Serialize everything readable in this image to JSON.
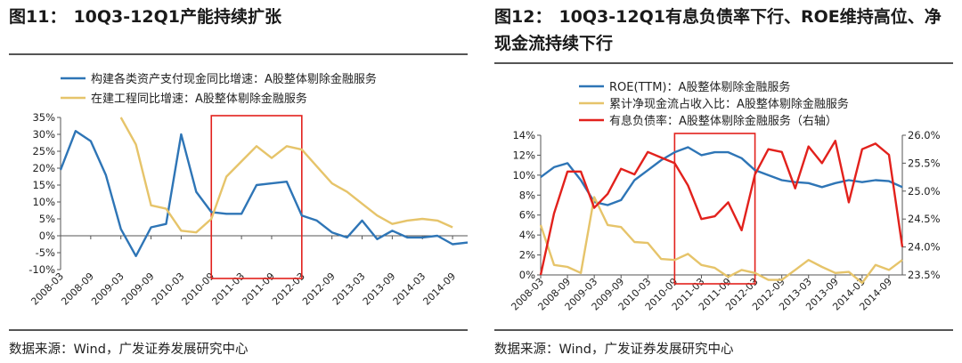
{
  "panels": [
    {
      "title_num": "图11：",
      "title": "10Q3-12Q1产能持续扩张",
      "source": "数据来源：Wind，广发证券发展研究中心"
    },
    {
      "title_num": "图12：",
      "title": "10Q3-12Q1有息负债率下行、ROE维持高位、净现金流持续下行",
      "source": "数据来源：Wind，广发证券发展研究中心"
    }
  ],
  "colors": {
    "blue": "#2E75B6",
    "gold": "#E6C46A",
    "red": "#E2211C",
    "highlight": "#E2211C",
    "axis": "#555555"
  },
  "chart_data": [
    {
      "type": "line",
      "title": "10Q3-12Q1产能持续扩张",
      "categories": [
        "2008-03",
        "2008-06",
        "2008-09",
        "2008-12",
        "2009-03",
        "2009-06",
        "2009-09",
        "2009-12",
        "2010-03",
        "2010-06",
        "2010-09",
        "2010-12",
        "2011-03",
        "2011-06",
        "2011-09",
        "2011-12",
        "2012-03",
        "2012-06",
        "2012-09",
        "2012-12",
        "2013-03",
        "2013-06",
        "2013-09",
        "2013-12",
        "2014-03",
        "2014-06",
        "2014-09",
        "2014-12"
      ],
      "x_tick_labels": [
        "2008-03",
        "2008-09",
        "2009-03",
        "2009-09",
        "2010-03",
        "2010-09",
        "2011-03",
        "2011-09",
        "2012-03",
        "2012-09",
        "2013-03",
        "2013-09",
        "2014-03",
        "2014-09"
      ],
      "ylim": [
        -10,
        35
      ],
      "y_ticks": [
        "35%",
        "30%",
        "25%",
        "20%",
        "15%",
        "10%",
        "5%",
        "0%",
        "-5%",
        "-10%"
      ],
      "legend_placement": "top",
      "highlight": {
        "from": "2010-09",
        "to": "2012-03"
      },
      "series": [
        {
          "name": "构建各类资产支付现金同比增速：A股整体剔除金融服务",
          "color": "blue",
          "values": [
            19.5,
            31,
            28,
            18,
            2,
            -6,
            2.5,
            3.5,
            30,
            13,
            7,
            6.5,
            6.5,
            15,
            15.5,
            16,
            6,
            4.5,
            1,
            -0.5,
            4.5,
            -1,
            1.5,
            -0.5,
            -0.5,
            0,
            -2.5,
            -2
          ]
        },
        {
          "name": "在建工程同比增速：A股整体剔除金融服务",
          "color": "gold",
          "values": [
            null,
            null,
            null,
            null,
            35,
            27,
            9,
            8,
            1.5,
            1,
            5,
            17.5,
            22,
            26.5,
            23,
            26.5,
            25.5,
            20.5,
            15.5,
            13,
            9.5,
            6,
            3.5,
            4.5,
            5,
            4.5,
            2.5,
            null
          ]
        }
      ]
    },
    {
      "type": "line",
      "title": "10Q3-12Q1有息负债率下行、ROE维持高位、净现金流持续下行",
      "categories": [
        "2008-03",
        "2008-06",
        "2008-09",
        "2008-12",
        "2009-03",
        "2009-06",
        "2009-09",
        "2009-12",
        "2010-03",
        "2010-06",
        "2010-09",
        "2010-12",
        "2011-03",
        "2011-06",
        "2011-09",
        "2011-12",
        "2012-03",
        "2012-06",
        "2012-09",
        "2012-12",
        "2013-03",
        "2013-06",
        "2013-09",
        "2013-12",
        "2014-03",
        "2014-06",
        "2014-09",
        "2014-12"
      ],
      "x_tick_labels": [
        "2008-03",
        "2008-09",
        "2009-03",
        "2009-09",
        "2010-03",
        "2010-09",
        "2011-03",
        "2011-09",
        "2012-03",
        "2012-09",
        "2013-03",
        "2013-09",
        "2014-03",
        "2014-09"
      ],
      "ylim": [
        0,
        14
      ],
      "y2lim": [
        23.5,
        26.0
      ],
      "y_ticks": [
        "14%",
        "12%",
        "10%",
        "8%",
        "6%",
        "4%",
        "2%",
        "0%"
      ],
      "y2_ticks": [
        "26.0%",
        "25.5%",
        "25.0%",
        "24.5%",
        "24.0%",
        "23.5%"
      ],
      "legend_placement": "top",
      "highlight": {
        "from": "2010-09",
        "to": "2012-03"
      },
      "series": [
        {
          "name": "ROE(TTM)：A股整体剔除金融服务",
          "color": "blue",
          "axis": "left",
          "values": [
            9.8,
            10.8,
            11.2,
            9.5,
            7.3,
            7,
            7.5,
            9.5,
            10.5,
            11.5,
            12.3,
            12.8,
            12,
            12.3,
            12.3,
            11.7,
            10.5,
            10,
            9.5,
            9.3,
            9.2,
            8.8,
            9.2,
            9.5,
            9.3,
            9.5,
            9.4,
            8.8
          ]
        },
        {
          "name": "累计净现金流占收入比：A股整体剔除金融服务",
          "color": "gold",
          "axis": "left",
          "values": [
            5,
            1,
            0.8,
            0.2,
            7.8,
            5,
            4.8,
            3.3,
            3.2,
            1.6,
            1.5,
            2.1,
            1,
            0.7,
            -0.2,
            0.5,
            0.2,
            -0.5,
            -0.5,
            0.5,
            1.5,
            0.8,
            0.2,
            0.3,
            -0.8,
            1,
            0.5,
            1.5
          ]
        },
        {
          "name": "有息负债率：A股整体剔除金融服务（右轴）",
          "color": "red",
          "axis": "right",
          "values": [
            23.5,
            24.6,
            25.35,
            25.35,
            24.7,
            24.95,
            25.4,
            25.3,
            25.7,
            25.6,
            25.5,
            25.1,
            24.5,
            24.55,
            24.8,
            24.3,
            25.3,
            25.75,
            25.7,
            25.05,
            25.8,
            25.5,
            25.9,
            24.8,
            25.75,
            25.85,
            25.65,
            24.0
          ]
        }
      ]
    }
  ]
}
